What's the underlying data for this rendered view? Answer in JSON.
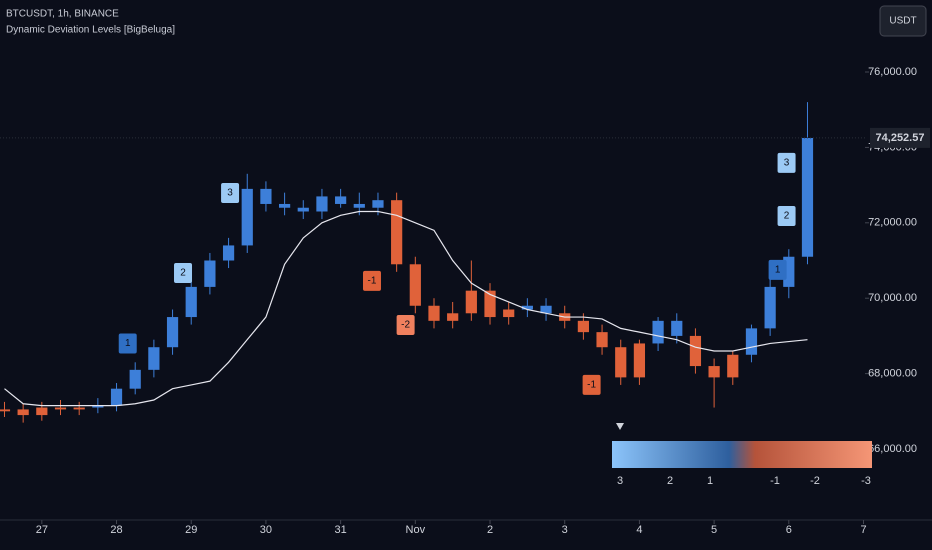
{
  "chart_data": {
    "type": "candlestick",
    "header": "BTCUSDT, 1h, BINANCE",
    "indicator": "Dynamic Deviation Levels [BigBeluga]",
    "currency": "USDT",
    "x": [
      -0.5,
      -0.25,
      0,
      0.25,
      0.5,
      0.75,
      1,
      1.25,
      1.5,
      1.75,
      2,
      2.25,
      2.5,
      2.75,
      3,
      3.25,
      3.5,
      3.75,
      4,
      4.25,
      4.5,
      4.75,
      5,
      5.25,
      5.5,
      5.75,
      6,
      6.25,
      6.5,
      6.75,
      7,
      7.25,
      7.5,
      7.75,
      8,
      8.25,
      8.5,
      8.75,
      9,
      9.25,
      9.5,
      9.75,
      10,
      10.25
    ],
    "open": [
      67000,
      67050,
      66900,
      67100,
      67050,
      67100,
      67150,
      67600,
      68100,
      68700,
      69500,
      70300,
      71000,
      71400,
      72900,
      72500,
      72400,
      72300,
      72700,
      72500,
      72400,
      72600,
      70900,
      69800,
      69400,
      69600,
      70200,
      69500,
      69700,
      69800,
      69600,
      69400,
      69100,
      68700,
      67900,
      68800,
      69400,
      69000,
      68200,
      67900,
      68500,
      69200,
      70300,
      71100
    ],
    "high": [
      67250,
      67200,
      67250,
      67300,
      67250,
      67350,
      67750,
      68300,
      68900,
      69700,
      70500,
      71200,
      71600,
      73300,
      73100,
      72800,
      72600,
      72900,
      72900,
      72800,
      72800,
      72800,
      71100,
      70000,
      69900,
      71000,
      70400,
      69900,
      70000,
      70000,
      69800,
      69600,
      69300,
      68900,
      68900,
      69500,
      69600,
      69200,
      68400,
      68600,
      69300,
      70500,
      71300,
      75200
    ],
    "low": [
      66850,
      66700,
      66750,
      66900,
      66900,
      66950,
      67000,
      67450,
      67900,
      68500,
      69300,
      70100,
      70800,
      71200,
      72300,
      72200,
      72100,
      72100,
      72400,
      72200,
      72200,
      70700,
      69600,
      69200,
      69200,
      69400,
      69300,
      69300,
      69500,
      69400,
      69200,
      68900,
      68500,
      67700,
      67700,
      68600,
      68800,
      68000,
      67100,
      67700,
      68300,
      69000,
      70000,
      70900
    ],
    "close": [
      67050,
      66900,
      67100,
      67050,
      67100,
      67150,
      67600,
      68100,
      68700,
      69500,
      70300,
      71000,
      71400,
      72900,
      72500,
      72400,
      72300,
      72700,
      72500,
      72400,
      72600,
      70900,
      69800,
      69400,
      69600,
      70200,
      69500,
      69700,
      69800,
      69600,
      69400,
      69100,
      68700,
      67900,
      68800,
      69400,
      69000,
      68200,
      67900,
      68500,
      69200,
      70300,
      71100,
      74250
    ],
    "baseline": [
      67600,
      67200,
      67150,
      67150,
      67150,
      67150,
      67150,
      67200,
      67300,
      67600,
      67700,
      67800,
      68300,
      68900,
      69500,
      70900,
      71600,
      72000,
      72200,
      72300,
      72300,
      72200,
      72000,
      71800,
      71000,
      70400,
      70100,
      69900,
      69700,
      69600,
      69500,
      69500,
      69450,
      69200,
      69100,
      69000,
      68900,
      68700,
      68600,
      68600,
      68700,
      68800,
      68850,
      68900
    ],
    "up_color": "#3d7fd9",
    "down_color": "#e0623a",
    "baseline_color": "#e6e6ee",
    "signals": [
      {
        "label": "1",
        "x": 1.15,
        "y": 68800,
        "color": "#2f6fc4"
      },
      {
        "label": "2",
        "x": 1.89,
        "y": 70670,
        "color": "#9ccaf5"
      },
      {
        "label": "3",
        "x": 2.52,
        "y": 72790,
        "color": "#9ccaf5"
      },
      {
        "label": "-1",
        "x": 4.42,
        "y": 70460,
        "color": "#e0623a"
      },
      {
        "label": "-2",
        "x": 4.87,
        "y": 69290,
        "color": "#f0805e"
      },
      {
        "label": "-1",
        "x": 7.36,
        "y": 67700,
        "color": "#e0623a"
      },
      {
        "label": "1",
        "x": 9.85,
        "y": 70750,
        "color": "#2f6fc4"
      },
      {
        "label": "2",
        "x": 9.97,
        "y": 72180,
        "color": "#9ccaf5"
      },
      {
        "label": "3",
        "x": 9.97,
        "y": 73590,
        "color": "#9ccaf5"
      }
    ],
    "gradient_labels": [
      "3",
      "2",
      "1",
      "-1",
      "-2",
      "-3"
    ],
    "last_price": {
      "value": 74252.57,
      "label": "74,252.57"
    },
    "xlim": [
      -0.56,
      11.02
    ],
    "ylim": [
      64117,
      77910
    ],
    "xticks": [
      {
        "value": 0,
        "label": "27"
      },
      {
        "value": 1,
        "label": "28"
      },
      {
        "value": 2,
        "label": "29"
      },
      {
        "value": 3,
        "label": "30"
      },
      {
        "value": 4,
        "label": "31"
      },
      {
        "value": 5,
        "label": "Nov"
      },
      {
        "value": 6,
        "label": "2"
      },
      {
        "value": 7,
        "label": "3"
      },
      {
        "value": 8,
        "label": "4"
      },
      {
        "value": 9,
        "label": "5"
      },
      {
        "value": 10,
        "label": "6"
      },
      {
        "value": 11,
        "label": "7"
      }
    ],
    "yticks": [
      {
        "value": 66000,
        "label": "66,000.00"
      },
      {
        "value": 68000,
        "label": "68,000.00"
      },
      {
        "value": 70000,
        "label": "70,000.00"
      },
      {
        "value": 72000,
        "label": "72,000.00"
      },
      {
        "value": 74000,
        "label": "74,000.00"
      },
      {
        "value": 76000,
        "label": "76,000.00"
      }
    ]
  }
}
